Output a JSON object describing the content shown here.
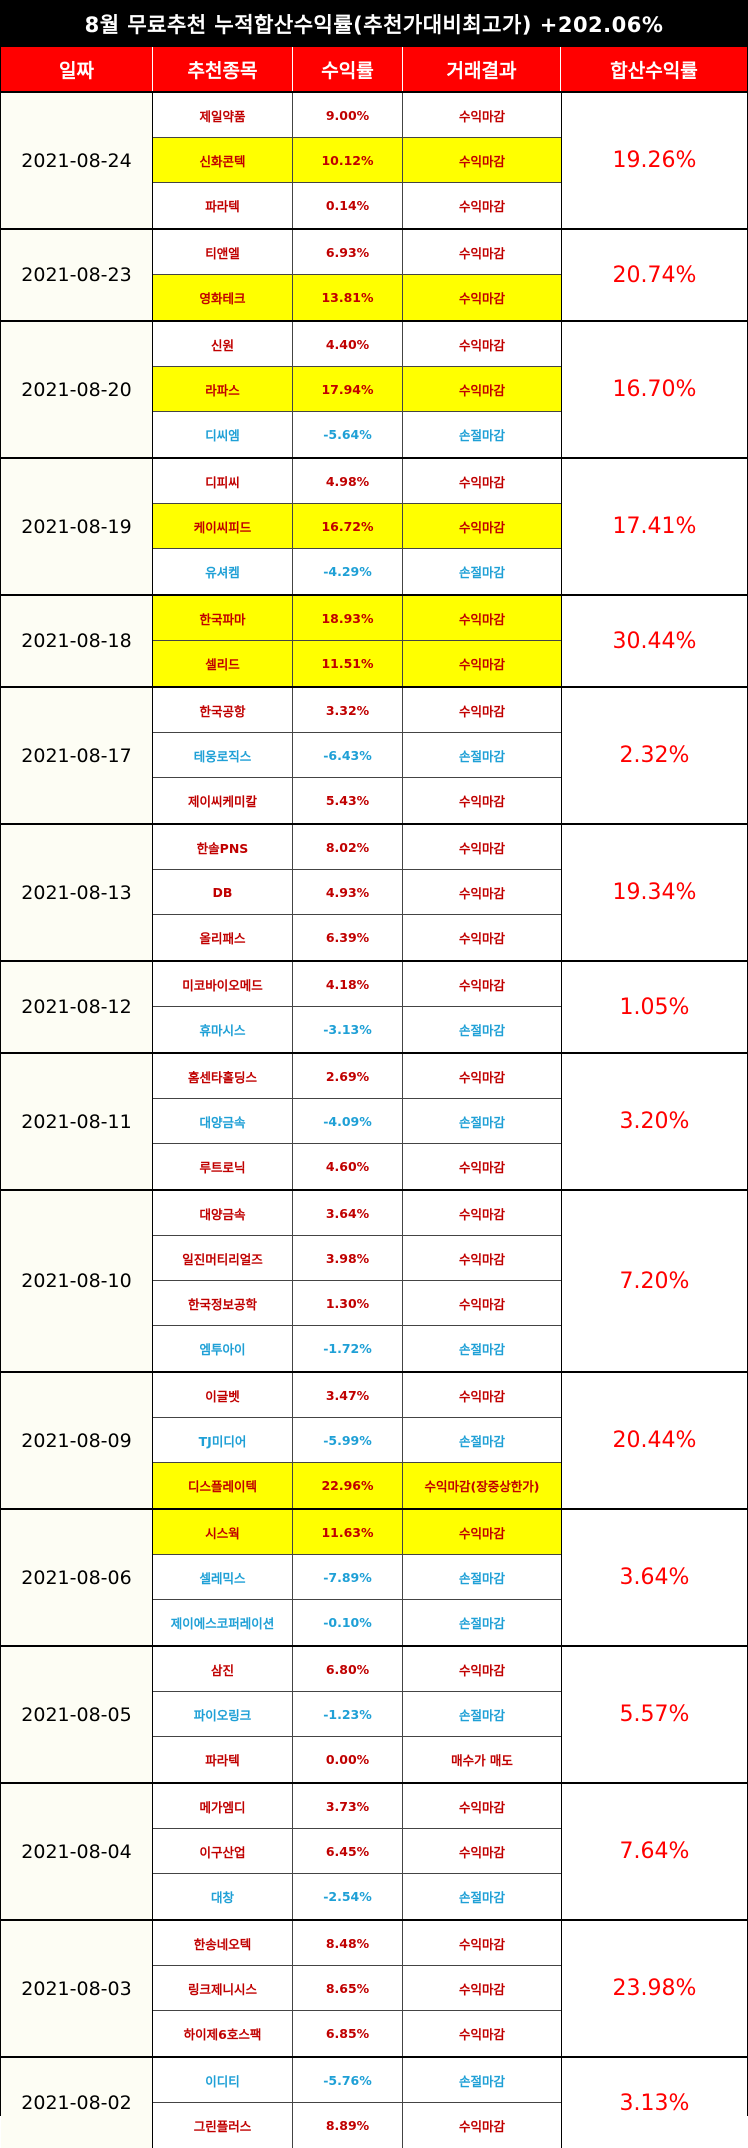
{
  "title": "8월 무료추천 누적합산수익률(추천가대비최고가) +202.06%",
  "headers": [
    "일짜",
    "추천종목",
    "수익률",
    "거래결과",
    "합산수익률"
  ],
  "colors": {
    "profit": "#ff0000",
    "loss": "#1fa0d6",
    "highlight": "#ffff00",
    "header": "#ff0000"
  },
  "groups": [
    {
      "date": "2021-08-24",
      "total": "19.26%",
      "rows": [
        {
          "name": "제일약품",
          "rate": "9.00%",
          "result": "수익마감",
          "hl": false,
          "loss": false
        },
        {
          "name": "신화콘텍",
          "rate": "10.12%",
          "result": "수익마감",
          "hl": true,
          "loss": false
        },
        {
          "name": "파라텍",
          "rate": "0.14%",
          "result": "수익마감",
          "hl": false,
          "loss": false
        }
      ]
    },
    {
      "date": "2021-08-23",
      "total": "20.74%",
      "rows": [
        {
          "name": "티앤엘",
          "rate": "6.93%",
          "result": "수익마감",
          "hl": false,
          "loss": false
        },
        {
          "name": "영화테크",
          "rate": "13.81%",
          "result": "수익마감",
          "hl": true,
          "loss": false
        }
      ]
    },
    {
      "date": "2021-08-20",
      "total": "16.70%",
      "rows": [
        {
          "name": "신원",
          "rate": "4.40%",
          "result": "수익마감",
          "hl": false,
          "loss": false
        },
        {
          "name": "라파스",
          "rate": "17.94%",
          "result": "수익마감",
          "hl": true,
          "loss": false
        },
        {
          "name": "디씨엠",
          "rate": "-5.64%",
          "result": "손절마감",
          "hl": false,
          "loss": true
        }
      ]
    },
    {
      "date": "2021-08-19",
      "total": "17.41%",
      "rows": [
        {
          "name": "디피씨",
          "rate": "4.98%",
          "result": "수익마감",
          "hl": false,
          "loss": false
        },
        {
          "name": "케이씨피드",
          "rate": "16.72%",
          "result": "수익마감",
          "hl": true,
          "loss": false
        },
        {
          "name": "유셔켐",
          "rate": "-4.29%",
          "result": "손절마감",
          "hl": false,
          "loss": true
        }
      ]
    },
    {
      "date": "2021-08-18",
      "total": "30.44%",
      "rows": [
        {
          "name": "한국파마",
          "rate": "18.93%",
          "result": "수익마감",
          "hl": true,
          "loss": false
        },
        {
          "name": "셀리드",
          "rate": "11.51%",
          "result": "수익마감",
          "hl": true,
          "loss": false
        }
      ]
    },
    {
      "date": "2021-08-17",
      "total": "2.32%",
      "rows": [
        {
          "name": "한국공항",
          "rate": "3.32%",
          "result": "수익마감",
          "hl": false,
          "loss": false
        },
        {
          "name": "테웅로직스",
          "rate": "-6.43%",
          "result": "손절마감",
          "hl": false,
          "loss": true
        },
        {
          "name": "제이씨케미칼",
          "rate": "5.43%",
          "result": "수익마감",
          "hl": false,
          "loss": false
        }
      ]
    },
    {
      "date": "2021-08-13",
      "total": "19.34%",
      "rows": [
        {
          "name": "한솔PNS",
          "rate": "8.02%",
          "result": "수익마감",
          "hl": false,
          "loss": false
        },
        {
          "name": "DB",
          "rate": "4.93%",
          "result": "수익마감",
          "hl": false,
          "loss": false
        },
        {
          "name": "올리패스",
          "rate": "6.39%",
          "result": "수익마감",
          "hl": false,
          "loss": false
        }
      ]
    },
    {
      "date": "2021-08-12",
      "total": "1.05%",
      "rows": [
        {
          "name": "미코바이오메드",
          "rate": "4.18%",
          "result": "수익마감",
          "hl": false,
          "loss": false
        },
        {
          "name": "휴마시스",
          "rate": "-3.13%",
          "result": "손절마감",
          "hl": false,
          "loss": true
        }
      ]
    },
    {
      "date": "2021-08-11",
      "total": "3.20%",
      "rows": [
        {
          "name": "홈센타홀딩스",
          "rate": "2.69%",
          "result": "수익마감",
          "hl": false,
          "loss": false
        },
        {
          "name": "대양금속",
          "rate": "-4.09%",
          "result": "손절마감",
          "hl": false,
          "loss": true
        },
        {
          "name": "루트로닉",
          "rate": "4.60%",
          "result": "수익마감",
          "hl": false,
          "loss": false
        }
      ]
    },
    {
      "date": "2021-08-10",
      "total": "7.20%",
      "rows": [
        {
          "name": "대양금속",
          "rate": "3.64%",
          "result": "수익마감",
          "hl": false,
          "loss": false
        },
        {
          "name": "일진머티리얼즈",
          "rate": "3.98%",
          "result": "수익마감",
          "hl": false,
          "loss": false
        },
        {
          "name": "한국정보공학",
          "rate": "1.30%",
          "result": "수익마감",
          "hl": false,
          "loss": false
        },
        {
          "name": "엠투아이",
          "rate": "-1.72%",
          "result": "손절마감",
          "hl": false,
          "loss": true
        }
      ]
    },
    {
      "date": "2021-08-09",
      "total": "20.44%",
      "rows": [
        {
          "name": "이글벳",
          "rate": "3.47%",
          "result": "수익마감",
          "hl": false,
          "loss": false
        },
        {
          "name": "TJ미디어",
          "rate": "-5.99%",
          "result": "손절마감",
          "hl": false,
          "loss": true
        },
        {
          "name": "디스플레이텍",
          "rate": "22.96%",
          "result": "수익마감(장중상한가)",
          "hl": true,
          "loss": false
        }
      ]
    },
    {
      "date": "2021-08-06",
      "total": "3.64%",
      "rows": [
        {
          "name": "시스웍",
          "rate": "11.63%",
          "result": "수익마감",
          "hl": true,
          "loss": false
        },
        {
          "name": "셀레믹스",
          "rate": "-7.89%",
          "result": "손절마감",
          "hl": false,
          "loss": true
        },
        {
          "name": "제이에스코퍼레이션",
          "rate": "-0.10%",
          "result": "손절마감",
          "hl": false,
          "loss": true
        }
      ]
    },
    {
      "date": "2021-08-05",
      "total": "5.57%",
      "rows": [
        {
          "name": "삼진",
          "rate": "6.80%",
          "result": "수익마감",
          "hl": false,
          "loss": false
        },
        {
          "name": "파이오링크",
          "rate": "-1.23%",
          "result": "손절마감",
          "hl": false,
          "loss": true
        },
        {
          "name": "파라텍",
          "rate": "0.00%",
          "result": "매수가 매도",
          "hl": false,
          "loss": false
        }
      ]
    },
    {
      "date": "2021-08-04",
      "total": "7.64%",
      "rows": [
        {
          "name": "메가엠디",
          "rate": "3.73%",
          "result": "수익마감",
          "hl": false,
          "loss": false
        },
        {
          "name": "이구산업",
          "rate": "6.45%",
          "result": "수익마감",
          "hl": false,
          "loss": false
        },
        {
          "name": "대창",
          "rate": "-2.54%",
          "result": "손절마감",
          "hl": false,
          "loss": true
        }
      ]
    },
    {
      "date": "2021-08-03",
      "total": "23.98%",
      "rows": [
        {
          "name": "한송네오텍",
          "rate": "8.48%",
          "result": "수익마감",
          "hl": false,
          "loss": false
        },
        {
          "name": "링크제니시스",
          "rate": "8.65%",
          "result": "수익마감",
          "hl": false,
          "loss": false
        },
        {
          "name": "하이제6호스팩",
          "rate": "6.85%",
          "result": "수익마감",
          "hl": false,
          "loss": false
        }
      ]
    },
    {
      "date": "2021-08-02",
      "total": "3.13%",
      "rows": [
        {
          "name": "이디티",
          "rate": "-5.76%",
          "result": "손절마감",
          "hl": false,
          "loss": true
        },
        {
          "name": "그린플러스",
          "rate": "8.89%",
          "result": "수익마감",
          "hl": false,
          "loss": false
        }
      ]
    }
  ]
}
